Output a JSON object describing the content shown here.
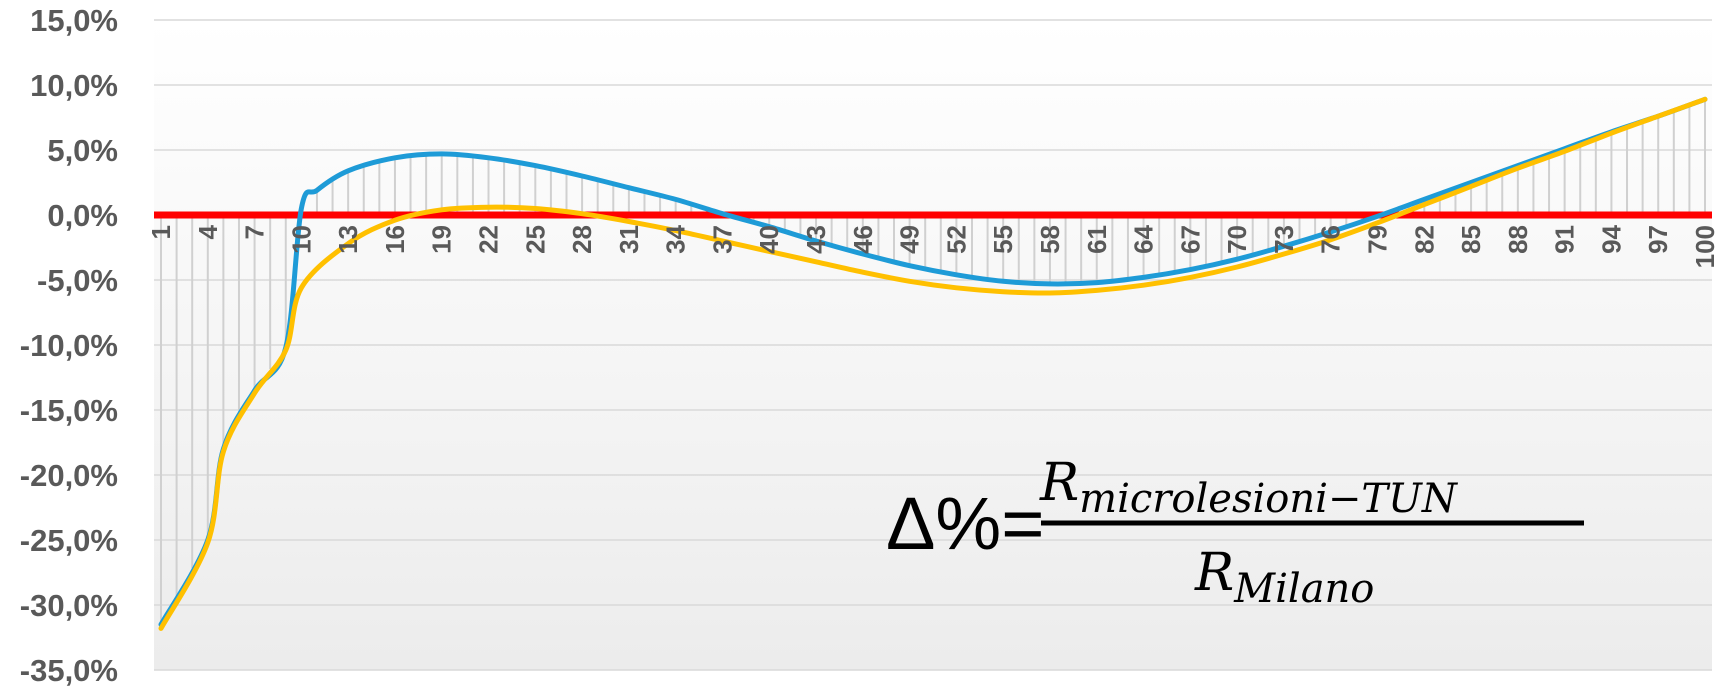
{
  "chart_data": {
    "type": "line",
    "title": "",
    "xlabel": "",
    "ylabel": "",
    "x_min": 1,
    "x_max": 100,
    "ylim": [
      -35,
      15
    ],
    "y_ticks": [
      15,
      10,
      5,
      0,
      -5,
      -10,
      -15,
      -20,
      -25,
      -30,
      -35
    ],
    "y_tick_labels": [
      "15,0%",
      "10,0%",
      "5,0%",
      "0,0%",
      "-5,0%",
      "-10,0%",
      "-15,0%",
      "-20,0%",
      "-25,0%",
      "-30,0%",
      "-35,0%"
    ],
    "x_tick_labels": [
      "1",
      "4",
      "7",
      "10",
      "13",
      "16",
      "19",
      "22",
      "25",
      "28",
      "31",
      "34",
      "37",
      "40",
      "43",
      "46",
      "49",
      "52",
      "55",
      "58",
      "61",
      "64",
      "67",
      "70",
      "73",
      "76",
      "79",
      "82",
      "85",
      "88",
      "91",
      "94",
      "97",
      "100"
    ],
    "grid": true,
    "legend": "none",
    "drop_lines": true,
    "zero_line_color": "#ff0000",
    "series": [
      {
        "color": "#1e9bd7",
        "points": [
          [
            1,
            -31.5
          ],
          [
            4,
            -25
          ],
          [
            5,
            -18
          ],
          [
            7,
            -13.5
          ],
          [
            9,
            -10.2
          ],
          [
            10,
            0.5
          ],
          [
            11,
            1.9
          ],
          [
            13,
            3.4
          ],
          [
            16,
            4.4
          ],
          [
            19,
            4.7
          ],
          [
            22,
            4.4
          ],
          [
            25,
            3.8
          ],
          [
            28,
            3.0
          ],
          [
            31,
            2.1
          ],
          [
            34,
            1.2
          ],
          [
            37,
            0.1
          ],
          [
            40,
            -0.9
          ],
          [
            43,
            -2.0
          ],
          [
            46,
            -3.0
          ],
          [
            49,
            -3.9
          ],
          [
            52,
            -4.6
          ],
          [
            55,
            -5.1
          ],
          [
            58,
            -5.3
          ],
          [
            61,
            -5.2
          ],
          [
            64,
            -4.8
          ],
          [
            67,
            -4.2
          ],
          [
            70,
            -3.4
          ],
          [
            73,
            -2.4
          ],
          [
            76,
            -1.3
          ],
          [
            79,
            -0.1
          ],
          [
            82,
            1.2
          ],
          [
            85,
            2.5
          ],
          [
            88,
            3.8
          ],
          [
            91,
            5.1
          ],
          [
            94,
            6.4
          ],
          [
            97,
            7.6
          ],
          [
            100,
            8.9
          ]
        ]
      },
      {
        "color": "#ffc000",
        "points": [
          [
            1,
            -31.8
          ],
          [
            4,
            -25.2
          ],
          [
            5,
            -18.2
          ],
          [
            7,
            -13.7
          ],
          [
            9,
            -10.4
          ],
          [
            10,
            -5.6
          ],
          [
            13,
            -2.2
          ],
          [
            16,
            -0.4
          ],
          [
            19,
            0.4
          ],
          [
            22,
            0.6
          ],
          [
            25,
            0.5
          ],
          [
            28,
            0.1
          ],
          [
            31,
            -0.5
          ],
          [
            34,
            -1.2
          ],
          [
            37,
            -2.0
          ],
          [
            40,
            -2.8
          ],
          [
            43,
            -3.6
          ],
          [
            46,
            -4.4
          ],
          [
            49,
            -5.1
          ],
          [
            52,
            -5.6
          ],
          [
            55,
            -5.9
          ],
          [
            58,
            -6.0
          ],
          [
            61,
            -5.8
          ],
          [
            64,
            -5.4
          ],
          [
            67,
            -4.8
          ],
          [
            70,
            -4.0
          ],
          [
            73,
            -3.0
          ],
          [
            76,
            -1.9
          ],
          [
            79,
            -0.6
          ],
          [
            82,
            0.8
          ],
          [
            85,
            2.2
          ],
          [
            88,
            3.6
          ],
          [
            91,
            4.9
          ],
          [
            94,
            6.3
          ],
          [
            97,
            7.6
          ],
          [
            100,
            8.9
          ]
        ]
      }
    ]
  },
  "formula": {
    "lhs": "Δ%=",
    "numerator_base": "R",
    "numerator_sub": "microlesioni−TUN",
    "denominator_base": "R",
    "denominator_sub": "Milano"
  }
}
